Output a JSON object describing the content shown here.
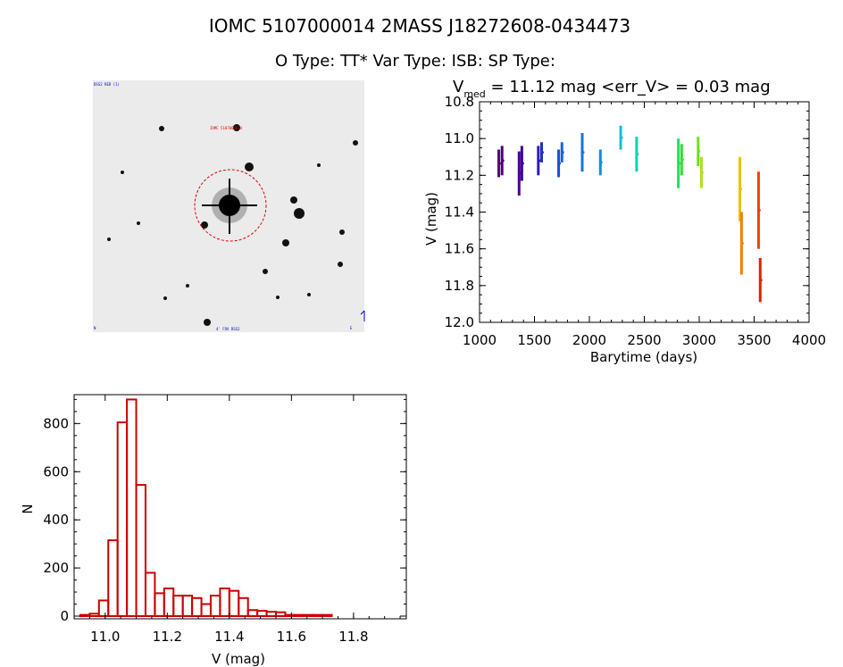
{
  "header": {
    "title_line": "IOMC 5107000014    2MASS J18272608-0434473",
    "type_line": "O Type: TT*  Var Type: ISB:  SP Type:"
  },
  "image_panel": {
    "corner_tl": "DSS2 RED (1)",
    "marker_label": "IOMC 5107000014",
    "corner_bl": "N",
    "bottom_center": "4' FOV DSS2",
    "corner_br": "E",
    "arrow_label": "N"
  },
  "chart_data": [
    {
      "type": "scatter",
      "title_lead": "V",
      "title_sub": "med",
      "title_rest": " = 11.12 mag <err_V> = 0.03 mag",
      "xlabel": "Barytime (days)",
      "ylabel": "V (mag)",
      "xlim": [
        1000,
        4000
      ],
      "ylim": [
        12.0,
        10.8
      ],
      "y_inverted": true,
      "xticks": [
        1000,
        1500,
        2000,
        2500,
        3000,
        3500,
        4000
      ],
      "yticks": [
        10.8,
        11.0,
        11.2,
        11.4,
        11.6,
        11.8,
        12.0
      ],
      "segments": [
        {
          "x": 1175,
          "vmin": 11.06,
          "vmax": 11.21,
          "color": "#5a007a"
        },
        {
          "x": 1205,
          "vmin": 11.04,
          "vmax": 11.2,
          "color": "#4b0082"
        },
        {
          "x": 1360,
          "vmin": 11.07,
          "vmax": 11.31,
          "color": "#4b0090"
        },
        {
          "x": 1385,
          "vmin": 11.04,
          "vmax": 11.23,
          "color": "#3a00a0"
        },
        {
          "x": 1535,
          "vmin": 11.04,
          "vmax": 11.2,
          "color": "#2a1fb4"
        },
        {
          "x": 1565,
          "vmin": 11.02,
          "vmax": 11.13,
          "color": "#2030c0"
        },
        {
          "x": 1720,
          "vmin": 11.06,
          "vmax": 11.21,
          "color": "#1d4fcf"
        },
        {
          "x": 1750,
          "vmin": 11.02,
          "vmax": 11.13,
          "color": "#1a60d8"
        },
        {
          "x": 1935,
          "vmin": 10.97,
          "vmax": 11.18,
          "color": "#1575d8"
        },
        {
          "x": 2100,
          "vmin": 11.06,
          "vmax": 11.2,
          "color": "#0b8fe0"
        },
        {
          "x": 2285,
          "vmin": 10.93,
          "vmax": 11.06,
          "color": "#0fc0d8"
        },
        {
          "x": 2430,
          "vmin": 10.99,
          "vmax": 11.18,
          "color": "#10d0b0"
        },
        {
          "x": 2810,
          "vmin": 11.0,
          "vmax": 11.27,
          "color": "#22e060"
        },
        {
          "x": 2840,
          "vmin": 11.03,
          "vmax": 11.2,
          "color": "#30e030"
        },
        {
          "x": 2990,
          "vmin": 10.99,
          "vmax": 11.15,
          "color": "#70e020"
        },
        {
          "x": 3020,
          "vmin": 11.1,
          "vmax": 11.27,
          "color": "#b0e020"
        },
        {
          "x": 3370,
          "vmin": 11.1,
          "vmax": 11.45,
          "color": "#f0c000"
        },
        {
          "x": 3385,
          "vmin": 11.4,
          "vmax": 11.74,
          "color": "#f08000"
        },
        {
          "x": 3540,
          "vmin": 11.18,
          "vmax": 11.6,
          "color": "#f04000"
        },
        {
          "x": 3555,
          "vmin": 11.65,
          "vmax": 11.89,
          "color": "#e02000"
        }
      ]
    },
    {
      "type": "bar",
      "xlabel": "V (mag)",
      "ylabel": "N",
      "xlim": [
        10.9,
        11.97
      ],
      "ylim": [
        0,
        920
      ],
      "xticks": [
        "11.0",
        "11.2",
        "11.4",
        "11.6",
        "11.8"
      ],
      "yticks": [
        "0",
        "200",
        "400",
        "600",
        "800"
      ],
      "bin_start": 10.92,
      "bin_width": 0.03,
      "counts": [
        5,
        10,
        65,
        315,
        805,
        900,
        545,
        180,
        95,
        115,
        85,
        85,
        75,
        50,
        85,
        115,
        105,
        75,
        25,
        22,
        18,
        16,
        5,
        5,
        5,
        5,
        5
      ],
      "bar_color": "#cc0000"
    }
  ]
}
